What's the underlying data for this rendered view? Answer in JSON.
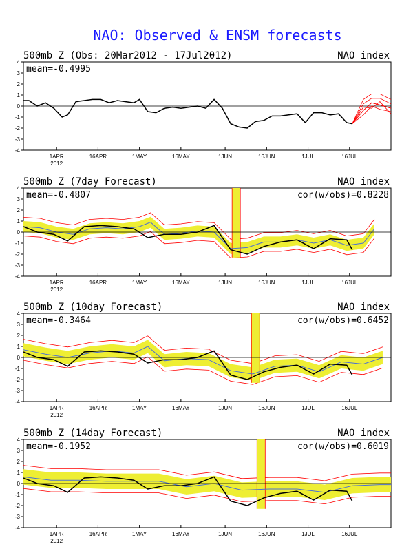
{
  "title": "NAO: Observed & ENSM forecasts",
  "xaxis": {
    "ticks": [
      {
        "label": "1APR",
        "sub": "2012"
      },
      {
        "label": "16APR",
        "sub": ""
      },
      {
        "label": "1MAY",
        "sub": ""
      },
      {
        "label": "16MAY",
        "sub": ""
      },
      {
        "label": "1JUN",
        "sub": ""
      },
      {
        "label": "16JUN",
        "sub": ""
      },
      {
        "label": "1JUL",
        "sub": ""
      },
      {
        "label": "16JUL",
        "sub": ""
      }
    ]
  },
  "panels": [
    {
      "title": "500mb Z (Obs: 20Mar2012 - 17Jul2012)",
      "index_label": "NAO index",
      "mean_text": "mean=-0.4995",
      "cor_text": ""
    },
    {
      "title": "500mb Z (7day Forecast)",
      "index_label": "NAO index",
      "mean_text": "mean=-0.4807",
      "cor_text": "cor(w/obs)=0.8228"
    },
    {
      "title": "500mb Z (10day Forecast)",
      "index_label": "NAO index",
      "mean_text": "mean=-0.3464",
      "cor_text": "cor(w/obs)=0.6452"
    },
    {
      "title": "500mb Z (14day Forecast)",
      "index_label": "NAO index",
      "mean_text": "mean=-0.1952",
      "cor_text": "cor(w/obs)=0.6019"
    }
  ],
  "chart_data": [
    {
      "type": "line",
      "title": "500mb Z (Obs: 20Mar2012 - 17Jul2012)",
      "x_range": [
        "2012-03-20",
        "2012-07-31"
      ],
      "ylim": [
        -4,
        4
      ],
      "y_ticks": [
        -4,
        -3,
        -2,
        -1,
        0,
        1,
        2,
        3,
        4
      ],
      "zero_line": true,
      "mean": -0.4995,
      "series": [
        {
          "color": "#000000",
          "x": [
            "2012-03-20",
            "2012-03-22",
            "2012-03-25",
            "2012-03-28",
            "2012-03-31",
            "2012-04-03",
            "2012-04-05",
            "2012-04-08",
            "2012-04-11",
            "2012-04-14",
            "2012-04-17",
            "2012-04-20",
            "2012-04-23",
            "2012-04-26",
            "2012-04-29",
            "2012-05-01",
            "2012-05-04",
            "2012-05-07",
            "2012-05-10",
            "2012-05-13",
            "2012-05-16",
            "2012-05-19",
            "2012-05-22",
            "2012-05-25",
            "2012-05-28",
            "2012-05-31",
            "2012-06-03",
            "2012-06-06",
            "2012-06-09",
            "2012-06-12",
            "2012-06-15",
            "2012-06-18",
            "2012-06-21",
            "2012-06-24",
            "2012-06-27",
            "2012-06-30",
            "2012-07-03",
            "2012-07-06",
            "2012-07-09",
            "2012-07-12",
            "2012-07-15",
            "2012-07-17"
          ],
          "y": [
            0.5,
            0.5,
            0.0,
            0.3,
            -0.2,
            -1.0,
            -0.8,
            0.4,
            0.5,
            0.6,
            0.6,
            0.3,
            0.5,
            0.4,
            0.3,
            0.6,
            -0.5,
            -0.6,
            -0.2,
            -0.1,
            -0.2,
            -0.1,
            0.0,
            -0.2,
            0.6,
            -0.2,
            -1.6,
            -1.9,
            -2.0,
            -1.4,
            -1.3,
            -0.9,
            -0.9,
            -0.8,
            -0.7,
            -1.5,
            -0.6,
            -0.6,
            -0.8,
            -0.7,
            -1.5,
            -1.6
          ]
        },
        {
          "name": "",
          "color": "#ff0000",
          "x": [
            "2012-07-17",
            "2012-07-21",
            "2012-07-24",
            "2012-07-27",
            "2012-07-31"
          ],
          "y": [
            -1.6,
            -0.4,
            0.3,
            0.1,
            -0.2
          ]
        }
      ]
    },
    {
      "type": "line",
      "title": "500mb Z (7day Forecast)",
      "x_range": [
        "2012-03-20",
        "2012-07-31"
      ],
      "ylim": [
        -4,
        4
      ],
      "y_ticks": [
        -4,
        -3,
        -2,
        -1,
        0,
        1,
        2,
        3,
        4
      ],
      "mean": -0.4807,
      "correlation": 0.8228,
      "ensemble_mean_x": [
        "2012-03-20",
        "2012-03-26",
        "2012-04-01",
        "2012-04-07",
        "2012-04-13",
        "2012-04-19",
        "2012-04-25",
        "2012-05-01",
        "2012-05-05",
        "2012-05-10",
        "2012-05-16",
        "2012-05-22",
        "2012-05-28",
        "2012-06-03",
        "2012-06-09",
        "2012-06-15",
        "2012-06-21",
        "2012-06-27",
        "2012-07-03",
        "2012-07-09",
        "2012-07-15",
        "2012-07-21",
        "2012-07-25"
      ],
      "ensemble_mean_y": [
        0.5,
        0.4,
        0.0,
        -0.2,
        0.3,
        0.4,
        0.3,
        0.5,
        0.9,
        -0.2,
        -0.1,
        0.1,
        0.0,
        -1.5,
        -1.4,
        -0.9,
        -0.9,
        -0.7,
        -1.0,
        -0.7,
        -1.2,
        -1.0,
        0.3
      ],
      "spread_half_width": 0.5,
      "spike": {
        "x": "2012-06-05",
        "y_top": 4
      },
      "observed_x": [
        "2012-03-20",
        "2012-03-25",
        "2012-03-31",
        "2012-04-05",
        "2012-04-11",
        "2012-04-17",
        "2012-04-23",
        "2012-04-29",
        "2012-05-04",
        "2012-05-10",
        "2012-05-16",
        "2012-05-22",
        "2012-05-28",
        "2012-06-03",
        "2012-06-09",
        "2012-06-15",
        "2012-06-21",
        "2012-06-27",
        "2012-07-03",
        "2012-07-09",
        "2012-07-15",
        "2012-07-17"
      ],
      "observed_y": [
        0.5,
        0.0,
        -0.2,
        -0.8,
        0.5,
        0.6,
        0.5,
        0.3,
        -0.5,
        -0.2,
        -0.2,
        0.0,
        0.6,
        -1.6,
        -2.0,
        -1.3,
        -0.9,
        -0.7,
        -1.5,
        -0.6,
        -0.7,
        -1.6
      ]
    },
    {
      "type": "line",
      "title": "500mb Z (10day Forecast)",
      "x_range": [
        "2012-03-20",
        "2012-07-31"
      ],
      "ylim": [
        -4,
        4
      ],
      "y_ticks": [
        -4,
        -3,
        -2,
        -1,
        0,
        1,
        2,
        3,
        4
      ],
      "mean": -0.3464,
      "correlation": 0.6452,
      "ensemble_mean_x": [
        "2012-03-20",
        "2012-03-28",
        "2012-04-05",
        "2012-04-13",
        "2012-04-21",
        "2012-04-29",
        "2012-05-04",
        "2012-05-10",
        "2012-05-18",
        "2012-05-26",
        "2012-06-03",
        "2012-06-11",
        "2012-06-19",
        "2012-06-27",
        "2012-07-05",
        "2012-07-13",
        "2012-07-21",
        "2012-07-28"
      ],
      "ensemble_mean_y": [
        0.7,
        0.3,
        0.0,
        0.4,
        0.6,
        0.4,
        1.0,
        -0.3,
        -0.1,
        -0.2,
        -1.2,
        -1.5,
        -0.8,
        -0.7,
        -1.3,
        -0.4,
        -0.6,
        0.0
      ],
      "spread_half_width": 0.6,
      "spike": {
        "x": "2012-06-12",
        "y_top": 4
      },
      "observed_x": [
        "2012-03-20",
        "2012-03-25",
        "2012-03-31",
        "2012-04-05",
        "2012-04-11",
        "2012-04-17",
        "2012-04-23",
        "2012-04-29",
        "2012-05-04",
        "2012-05-10",
        "2012-05-16",
        "2012-05-22",
        "2012-05-28",
        "2012-06-03",
        "2012-06-09",
        "2012-06-15",
        "2012-06-21",
        "2012-06-27",
        "2012-07-03",
        "2012-07-09",
        "2012-07-15",
        "2012-07-17"
      ],
      "observed_y": [
        0.5,
        0.0,
        -0.2,
        -0.8,
        0.5,
        0.6,
        0.5,
        0.3,
        -0.5,
        -0.2,
        -0.2,
        0.0,
        0.6,
        -1.6,
        -2.0,
        -1.3,
        -0.9,
        -0.7,
        -1.5,
        -0.6,
        -0.7,
        -1.6
      ]
    },
    {
      "type": "line",
      "title": "500mb Z (14day Forecast)",
      "x_range": [
        "2012-03-20",
        "2012-07-31"
      ],
      "ylim": [
        -4,
        4
      ],
      "y_ticks": [
        -4,
        -3,
        -2,
        -1,
        0,
        1,
        2,
        3,
        4
      ],
      "mean": -0.1952,
      "correlation": 0.6019,
      "ensemble_mean_x": [
        "2012-03-20",
        "2012-03-30",
        "2012-04-09",
        "2012-04-19",
        "2012-04-29",
        "2012-05-08",
        "2012-05-18",
        "2012-05-28",
        "2012-06-07",
        "2012-06-17",
        "2012-06-27",
        "2012-07-07",
        "2012-07-17",
        "2012-07-27",
        "2012-07-31"
      ],
      "ensemble_mean_y": [
        0.6,
        0.3,
        0.3,
        0.2,
        0.2,
        0.2,
        -0.3,
        0.0,
        -0.6,
        -0.5,
        -0.5,
        -0.8,
        -0.2,
        -0.1,
        -0.1
      ],
      "spread_half_width": 0.7,
      "spike": {
        "x": "2012-06-14",
        "y_top": 4
      },
      "observed_x": [
        "2012-03-20",
        "2012-03-25",
        "2012-03-31",
        "2012-04-05",
        "2012-04-11",
        "2012-04-17",
        "2012-04-23",
        "2012-04-29",
        "2012-05-04",
        "2012-05-10",
        "2012-05-16",
        "2012-05-22",
        "2012-05-28",
        "2012-06-03",
        "2012-06-09",
        "2012-06-15",
        "2012-06-21",
        "2012-06-27",
        "2012-07-03",
        "2012-07-09",
        "2012-07-15",
        "2012-07-17"
      ],
      "observed_y": [
        0.5,
        0.0,
        -0.2,
        -0.8,
        0.5,
        0.6,
        0.5,
        0.3,
        -0.5,
        -0.2,
        -0.2,
        0.0,
        0.6,
        -1.6,
        -2.0,
        -1.3,
        -0.9,
        -0.7,
        -1.5,
        -0.6,
        -0.7,
        -1.6
      ]
    }
  ],
  "colors": {
    "title": "#1a1aff",
    "observed": "#000000",
    "spread": "#eeee33",
    "spread_edge": "#ff0000",
    "ensemble_mean": "#4a6fd4",
    "zero_line": "#000000"
  }
}
